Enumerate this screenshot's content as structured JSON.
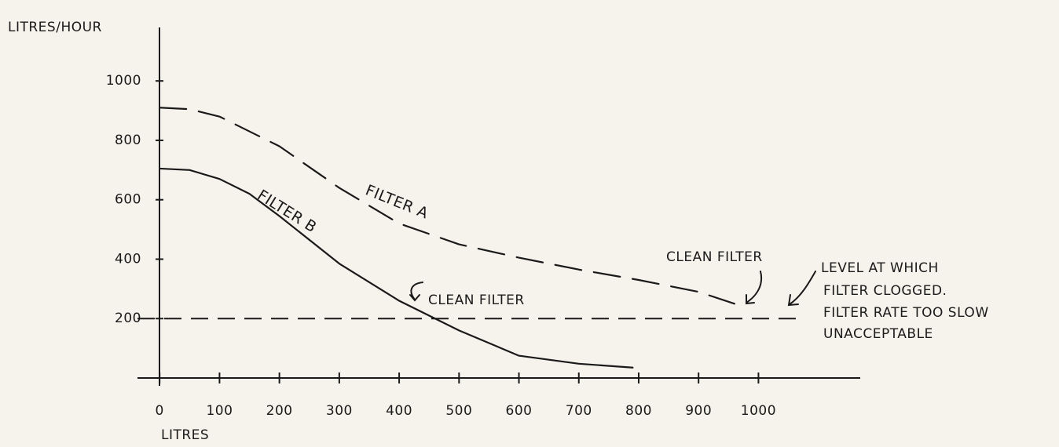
{
  "chart_data": {
    "type": "line",
    "y_label": "LITRES/HOUR",
    "x_label": "LITRES",
    "series": [
      {
        "name": "FILTER A",
        "color": "#1a1a1a",
        "dashed": true,
        "x": [
          0,
          50,
          100,
          200,
          300,
          400,
          500,
          600,
          700,
          800,
          900,
          960
        ],
        "values": [
          910,
          905,
          880,
          780,
          640,
          520,
          450,
          405,
          365,
          330,
          290,
          250
        ]
      },
      {
        "name": "FILTER B",
        "color": "#1a1a1a",
        "dashed": false,
        "x": [
          0,
          50,
          100,
          150,
          200,
          300,
          400,
          500,
          600,
          700,
          790
        ],
        "values": [
          705,
          700,
          670,
          620,
          545,
          385,
          260,
          160,
          75,
          48,
          35
        ]
      }
    ],
    "reference_line": 200,
    "annotations": [
      "CLEAN FILTER",
      "CLEAN FILTER",
      "LEVEL AT WHICH",
      "FILTER CLOGGED.",
      "FILTER RATE TOO SLOW",
      "UNACCEPTABLE"
    ],
    "xlim": [
      -37,
      1170
    ],
    "ylim": [
      0,
      1180
    ],
    "xticks": [
      0,
      100,
      200,
      300,
      400,
      500,
      600,
      700,
      800,
      900,
      1000
    ],
    "yticks": [
      200,
      400,
      600,
      800,
      1000
    ]
  }
}
